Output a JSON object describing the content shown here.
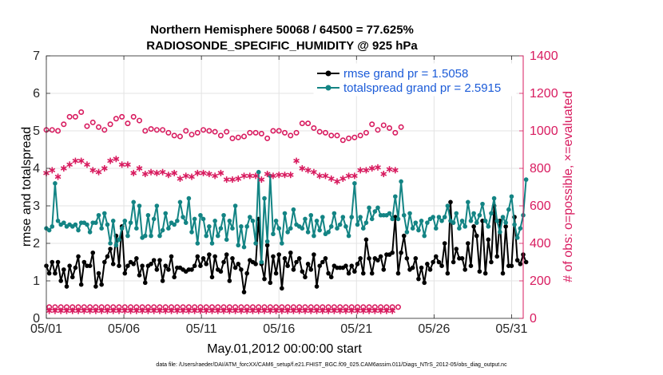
{
  "chart_data": {
    "type": "line",
    "title": "Northern Hemisphere 50068 / 64500 = 77.625%",
    "subtitle": "RADIOSONDE_SPECIFIC_HUMIDITY @ 925 hPa",
    "xlabel": "May.01,2012 00:00:00 start",
    "ylabel_left": "rmse and totalspread",
    "ylabel_right": "# of obs: o=possible, ×=evaluated",
    "footer": "data file: /Users/raeder/DAI/ATM_forcXX/CAM6_setup/f.e21.FHIST_BGC.f09_025.CAM6assim.011/Diags_NTrS_2012-05/obs_diag_output.nc",
    "x_ticks": [
      "05/01",
      "05/06",
      "05/11",
      "05/16",
      "05/21",
      "05/26",
      "05/31"
    ],
    "x_tick_days": [
      0,
      5,
      10,
      15,
      20,
      25,
      30
    ],
    "xlim": [
      0,
      30.75
    ],
    "ylim_left": [
      0,
      7
    ],
    "y_ticks_left": [
      "0",
      "1",
      "2",
      "3",
      "4",
      "5",
      "6",
      "7"
    ],
    "ylim_right": [
      0,
      1400
    ],
    "y_ticks_right": [
      "0",
      "200",
      "400",
      "600",
      "800",
      "1000",
      "1200",
      "1400"
    ],
    "grid": true,
    "colors": {
      "rmse": "#000000",
      "spread": "#138484",
      "obs": "#d81b5f",
      "legend_text": "#1b5bd8"
    },
    "legend_position": "top-right",
    "series": [
      {
        "name": "rmse grand pr = 1.5058",
        "axis": "left",
        "values": [
          1.4,
          1.2,
          1.5,
          1.2,
          1.5,
          1.0,
          1.3,
          0.85,
          1.4,
          1.1,
          1.35,
          1.65,
          0.9,
          1.5,
          1.4,
          1.4,
          1.75,
          0.85,
          1.2,
          0.9,
          1.5,
          1.65,
          1.85,
          1.45,
          2.2,
          1.4,
          2.45,
          1.2,
          1.4,
          1.5,
          1.45,
          1.6,
          1.15,
          1.4,
          0.95,
          1.4,
          1.45,
          1.55,
          1.3,
          1.55,
          1.0,
          1.4,
          1.3,
          1.65,
          1.1,
          1.35,
          1.35,
          1.3,
          1.25,
          1.3,
          1.3,
          1.4,
          1.65,
          1.4,
          1.6,
          1.45,
          1.7,
          1.1,
          1.65,
          1.3,
          1.25,
          1.5,
          1.7,
          1.0,
          1.6,
          1.35,
          1.45,
          1.3,
          0.7,
          1.2,
          1.55,
          1.5,
          1.45,
          2.65,
          1.45,
          1.05,
          1.95,
          0.95,
          1.65,
          1.2,
          1.7,
          0.8,
          1.6,
          1.4,
          1.75,
          1.3,
          1.5,
          1.6,
          1.25,
          1.1,
          1.45,
          1.3,
          1.7,
          0.85,
          1.4,
          1.5,
          1.6,
          1.2,
          1.1,
          1.4,
          1.35,
          1.35,
          1.35,
          1.4,
          1.2,
          1.4,
          1.25,
          1.45,
          1.6,
          1.2,
          2.1,
          1.6,
          1.2,
          1.6,
          1.55,
          1.65,
          1.3,
          1.7,
          1.7,
          1.75,
          2.7,
          1.2,
          1.75,
          2.2,
          1.6,
          1.3,
          1.35,
          1.6,
          1.05,
          1.35,
          0.95,
          1.45,
          1.3,
          1.5,
          1.65,
          1.5,
          1.4,
          2.0,
          1.2,
          3.1,
          1.5,
          1.85,
          1.6,
          1.6,
          1.3,
          2.0,
          1.4,
          2.45,
          2.2,
          1.25,
          2.6,
          1.2,
          2.1,
          1.5,
          3.0,
          1.65,
          2.6,
          1.2,
          2.45,
          1.4,
          1.4,
          2.7,
          1.55,
          1.45,
          1.7,
          1.5
        ]
      },
      {
        "name": "totalspread grand pr = 2.5915",
        "axis": "left",
        "values": [
          2.4,
          2.35,
          2.45,
          3.6,
          2.6,
          2.5,
          2.55,
          2.45,
          2.5,
          2.45,
          2.5,
          2.35,
          2.55,
          2.55,
          2.5,
          2.3,
          2.55,
          2.55,
          2.75,
          2.4,
          2.8,
          2.5,
          2.0,
          2.6,
          1.95,
          2.1,
          2.4,
          2.6,
          2.2,
          2.55,
          3.1,
          2.4,
          3.0,
          2.15,
          2.2,
          2.75,
          2.2,
          2.65,
          3.0,
          2.2,
          2.35,
          2.8,
          2.4,
          2.55,
          2.5,
          2.6,
          3.1,
          2.7,
          2.55,
          3.2,
          2.3,
          2.65,
          2.0,
          2.75,
          2.65,
          2.2,
          2.45,
          2.0,
          2.6,
          2.2,
          2.4,
          2.75,
          2.1,
          2.6,
          2.4,
          3.0,
          1.95,
          2.45,
          1.9,
          2.45,
          2.7,
          2.6,
          2.0,
          3.9,
          1.5,
          3.2,
          2.05,
          3.8,
          2.25,
          2.6,
          2.4,
          2.0,
          2.8,
          2.3,
          2.4,
          2.9,
          2.5,
          2.45,
          2.4,
          2.65,
          2.3,
          2.75,
          2.2,
          2.6,
          2.35,
          2.7,
          2.25,
          2.3,
          2.45,
          2.8,
          2.4,
          2.5,
          2.7,
          2.45,
          2.2,
          2.7,
          3.6,
          2.5,
          2.7,
          2.4,
          2.55,
          2.95,
          2.65,
          2.85,
          2.95,
          2.75,
          2.75,
          2.75,
          2.8,
          2.65,
          3.25,
          2.65,
          3.65,
          2.75,
          2.3,
          2.8,
          2.4,
          2.55,
          2.35,
          2.6,
          2.2,
          2.55,
          2.65,
          2.7,
          2.4,
          2.7,
          2.6,
          2.7,
          3.0,
          2.6,
          2.55,
          2.8,
          2.4,
          2.6,
          2.45,
          3.1,
          2.6,
          2.8,
          2.55,
          2.75,
          3.05,
          2.6,
          2.45,
          2.8,
          3.2,
          2.6,
          2.3,
          2.7,
          2.55,
          2.9,
          3.25,
          2.5,
          2.15,
          2.4,
          2.75,
          3.7
        ]
      },
      {
        "name": "possible",
        "axis": "right",
        "marker": "circle",
        "values": [
          1005,
          60,
          1005,
          60,
          1000,
          60,
          1035,
          60,
          1075,
          60,
          1075,
          60,
          1100,
          60,
          1025,
          60,
          1045,
          60,
          1020,
          60,
          1005,
          60,
          1035,
          60,
          1065,
          60,
          1075,
          60,
          1040,
          60,
          1075,
          60,
          1055,
          60,
          1000,
          60,
          1010,
          60,
          1005,
          60,
          1005,
          60,
          990,
          60,
          975,
          60,
          970,
          60,
          1000,
          60,
          980,
          60,
          990,
          60,
          1005,
          60,
          1000,
          60,
          995,
          60,
          975,
          60,
          995,
          60,
          960,
          60,
          965,
          60,
          970,
          60,
          990,
          60,
          990,
          60,
          985,
          60,
          960,
          60,
          1000,
          60,
          1000,
          60,
          990,
          60,
          975,
          60,
          990,
          60,
          1040,
          60,
          1040,
          60,
          1015,
          60,
          995,
          60,
          990,
          60,
          975,
          60,
          975,
          60,
          950,
          60,
          960,
          60,
          965,
          60,
          975,
          60,
          990,
          60,
          1035,
          60,
          1005,
          60,
          1030,
          60,
          1015,
          60,
          990,
          60,
          1020
        ]
      },
      {
        "name": "evaluated",
        "axis": "right",
        "marker": "asterisk",
        "values": [
          775,
          40,
          790,
          40,
          755,
          40,
          800,
          40,
          820,
          40,
          840,
          40,
          840,
          40,
          820,
          40,
          790,
          40,
          780,
          40,
          800,
          40,
          840,
          40,
          850,
          40,
          820,
          40,
          820,
          40,
          775,
          40,
          800,
          40,
          770,
          40,
          780,
          40,
          775,
          40,
          780,
          40,
          765,
          40,
          775,
          40,
          745,
          40,
          760,
          40,
          755,
          40,
          775,
          40,
          775,
          40,
          770,
          40,
          760,
          40,
          775,
          40,
          740,
          40,
          740,
          40,
          745,
          40,
          760,
          40,
          760,
          40,
          760,
          40,
          740,
          40,
          770,
          40,
          760,
          40,
          765,
          40,
          765,
          40,
          765,
          40,
          840,
          40,
          800,
          40,
          790,
          40,
          780,
          40,
          760,
          40,
          760,
          40,
          745,
          40,
          730,
          40,
          745,
          40,
          760,
          40,
          760,
          40,
          790,
          40,
          790,
          40,
          800,
          40,
          805,
          40,
          770,
          40,
          795,
          40,
          790
        ]
      }
    ]
  }
}
